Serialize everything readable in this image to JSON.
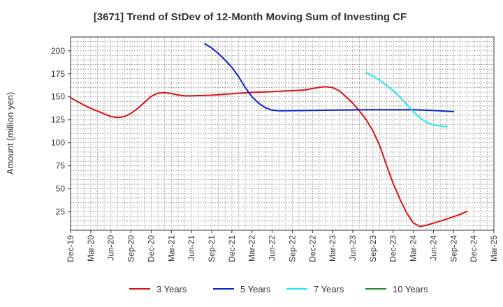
{
  "chart_data": {
    "type": "line",
    "title": "[3671]  Trend of StDev of 12-Month Moving Sum of Investing CF",
    "ylabel": "Amount (million yen)",
    "xlabel": "",
    "ylim": [
      5,
      215
    ],
    "yticks": [
      25,
      50,
      75,
      100,
      125,
      150,
      175,
      200
    ],
    "x_categories": [
      "Dec-19",
      "Mar-20",
      "Jun-20",
      "Sep-20",
      "Dec-20",
      "Mar-21",
      "Jun-21",
      "Sep-21",
      "Dec-21",
      "Mar-22",
      "Jun-22",
      "Sep-22",
      "Dec-22",
      "Mar-23",
      "Jun-23",
      "Sep-23",
      "Dec-23",
      "Mar-24",
      "Jun-24",
      "Sep-24",
      "Dec-24",
      "Mar-25"
    ],
    "grid": true,
    "legend_position": "bottom",
    "series": [
      {
        "name": "3 Years",
        "color": "#dd1111",
        "start_index": 0,
        "values": [
          149,
          145,
          141,
          137.5,
          134.5,
          131.5,
          128.5,
          127.5,
          128.5,
          132,
          137.5,
          144,
          150.5,
          154,
          154.5,
          153.5,
          152,
          151,
          151,
          151.3,
          151.5,
          151.8,
          152.3,
          152.8,
          153.3,
          153.8,
          154.3,
          154.8,
          155,
          155.3,
          155.6,
          156,
          156.3,
          156.6,
          157,
          157.6,
          159,
          160.3,
          161,
          160,
          156.5,
          150,
          143,
          134.5,
          125,
          113,
          97,
          76,
          56,
          39,
          24,
          13,
          9,
          10.5,
          12.7,
          15,
          17.3,
          19.7,
          22.3,
          25.5
        ]
      },
      {
        "name": "5 Years",
        "color": "#0b22cc",
        "start_index": 20,
        "values": [
          207.5,
          203,
          197,
          190,
          182,
          172,
          160,
          150,
          143,
          138,
          135.5,
          134.8,
          134.8,
          134.9,
          135,
          135.1,
          135.2,
          135.3,
          135.4,
          135.5,
          135.6,
          135.7,
          135.8,
          135.9,
          136,
          136,
          136,
          136,
          136,
          136,
          136,
          135.9,
          135.7,
          135.4,
          135.1,
          134.7,
          134.3,
          134
        ]
      },
      {
        "name": "7 Years",
        "color": "#22e5ee",
        "start_index": 44,
        "values": [
          176,
          172.5,
          168,
          162.5,
          156.5,
          150,
          142,
          134,
          127,
          122,
          119.5,
          118.3,
          117.8
        ]
      },
      {
        "name": "10 Years",
        "color": "#228822",
        "start_index": 0,
        "values": []
      }
    ]
  }
}
